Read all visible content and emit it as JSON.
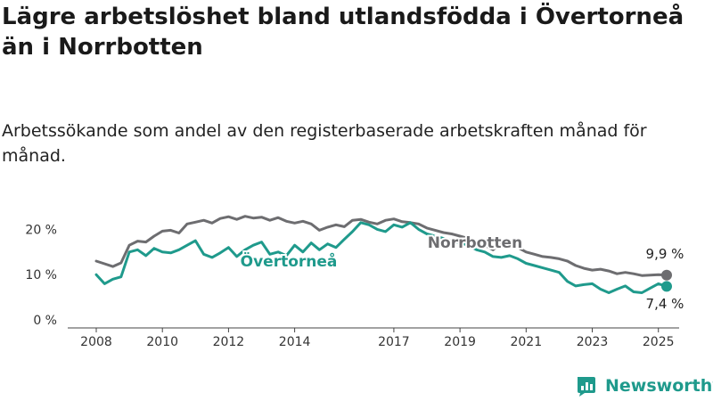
{
  "title": "Lägre arbetslöshet bland utlandsfödda i Övertorneå än i Norrbotten",
  "subtitle": "Arbetssökande som andel av den registerbaserade arbetskraften månad för månad.",
  "brand": {
    "name": "Newsworthy",
    "color": "#1f9a8c"
  },
  "chart_data": {
    "type": "line",
    "title": "Lägre arbetslöshet bland utlandsfödda i Övertorneå än i Norrbotten",
    "subtitle": "Arbetssökande som andel av den registerbaserade arbetskraften månad för månad.",
    "xlabel": "",
    "ylabel": "",
    "x_range": [
      2008.0,
      2025.25
    ],
    "ylim": [
      0,
      25
    ],
    "x_ticks": [
      {
        "value": 2008,
        "label": "2008"
      },
      {
        "value": 2010,
        "label": "2010"
      },
      {
        "value": 2012,
        "label": "2012"
      },
      {
        "value": 2014,
        "label": "2014"
      },
      {
        "value": 2017,
        "label": "2017"
      },
      {
        "value": 2019,
        "label": "2019"
      },
      {
        "value": 2021,
        "label": "2021"
      },
      {
        "value": 2023,
        "label": "2023"
      },
      {
        "value": 2025,
        "label": "2025"
      }
    ],
    "y_ticks": [
      {
        "value": 0,
        "label": "0 %"
      },
      {
        "value": 10,
        "label": "10 %"
      },
      {
        "value": 20,
        "label": "20 %"
      }
    ],
    "grid": false,
    "legend": "inline",
    "series": [
      {
        "name": "Norrbotten",
        "color": "#6d6d70",
        "end_label": "9,9 %",
        "x": [
          2008.0,
          2008.25,
          2008.5,
          2008.75,
          2009.0,
          2009.25,
          2009.5,
          2009.75,
          2010.0,
          2010.25,
          2010.5,
          2010.75,
          2011.0,
          2011.25,
          2011.5,
          2011.75,
          2012.0,
          2012.25,
          2012.5,
          2012.75,
          2013.0,
          2013.25,
          2013.5,
          2013.75,
          2014.0,
          2014.25,
          2014.5,
          2014.75,
          2015.0,
          2015.25,
          2015.5,
          2015.75,
          2016.0,
          2016.25,
          2016.5,
          2016.75,
          2017.0,
          2017.25,
          2017.5,
          2017.75,
          2018.0,
          2018.25,
          2018.5,
          2018.75,
          2019.0,
          2019.25,
          2019.5,
          2019.75,
          2020.0,
          2020.25,
          2020.5,
          2020.75,
          2021.0,
          2021.25,
          2021.5,
          2021.75,
          2022.0,
          2022.25,
          2022.5,
          2022.75,
          2023.0,
          2023.25,
          2023.5,
          2023.75,
          2024.0,
          2024.25,
          2024.5,
          2024.75,
          2025.0,
          2025.25
        ],
        "values": [
          13.0,
          12.4,
          11.8,
          12.6,
          16.5,
          17.4,
          17.2,
          18.5,
          19.6,
          19.8,
          19.2,
          21.2,
          21.6,
          22.0,
          21.4,
          22.4,
          22.8,
          22.2,
          22.9,
          22.5,
          22.7,
          22.0,
          22.6,
          21.8,
          21.4,
          21.8,
          21.2,
          19.8,
          20.5,
          21.0,
          20.6,
          22.0,
          22.2,
          21.6,
          21.2,
          22.0,
          22.3,
          21.7,
          21.5,
          21.2,
          20.3,
          19.8,
          19.3,
          19.0,
          18.5,
          18.0,
          17.0,
          16.5,
          15.5,
          17.0,
          16.8,
          16.0,
          15.0,
          14.5,
          14.0,
          13.8,
          13.5,
          13.0,
          12.0,
          11.4,
          11.0,
          11.2,
          10.8,
          10.2,
          10.5,
          10.2,
          9.8,
          9.9,
          10.0,
          9.9
        ]
      },
      {
        "name": "Övertorneå",
        "color": "#1f9a8c",
        "end_label": "7,4 %",
        "x": [
          2008.0,
          2008.25,
          2008.5,
          2008.75,
          2009.0,
          2009.25,
          2009.5,
          2009.75,
          2010.0,
          2010.25,
          2010.5,
          2010.75,
          2011.0,
          2011.25,
          2011.5,
          2011.75,
          2012.0,
          2012.25,
          2012.5,
          2012.75,
          2013.0,
          2013.25,
          2013.5,
          2013.75,
          2014.0,
          2014.25,
          2014.5,
          2014.75,
          2015.0,
          2015.25,
          2015.5,
          2015.75,
          2016.0,
          2016.25,
          2016.5,
          2016.75,
          2017.0,
          2017.25,
          2017.5,
          2017.75,
          2018.0,
          2018.25,
          2018.5,
          2018.75,
          2019.0,
          2019.25,
          2019.5,
          2019.75,
          2020.0,
          2020.25,
          2020.5,
          2020.75,
          2021.0,
          2021.25,
          2021.5,
          2021.75,
          2022.0,
          2022.25,
          2022.5,
          2022.75,
          2023.0,
          2023.25,
          2023.5,
          2023.75,
          2024.0,
          2024.25,
          2024.5,
          2024.75,
          2025.0,
          2025.25
        ],
        "values": [
          10.0,
          8.0,
          9.0,
          9.5,
          15.0,
          15.5,
          14.2,
          15.8,
          15.0,
          14.8,
          15.5,
          16.5,
          17.5,
          14.5,
          13.8,
          14.8,
          16.0,
          14.0,
          15.5,
          16.5,
          17.2,
          14.5,
          15.0,
          14.2,
          16.5,
          15.0,
          17.0,
          15.5,
          16.8,
          16.0,
          17.8,
          19.5,
          21.5,
          21.0,
          20.0,
          19.5,
          21.0,
          20.5,
          21.5,
          20.0,
          19.0,
          18.5,
          18.0,
          17.5,
          17.0,
          16.5,
          15.5,
          15.0,
          14.0,
          13.8,
          14.2,
          13.5,
          12.5,
          12.0,
          11.5,
          11.0,
          10.5,
          8.5,
          7.5,
          7.8,
          8.0,
          6.8,
          6.0,
          6.8,
          7.5,
          6.2,
          6.0,
          7.0,
          8.0,
          7.4
        ]
      }
    ]
  }
}
